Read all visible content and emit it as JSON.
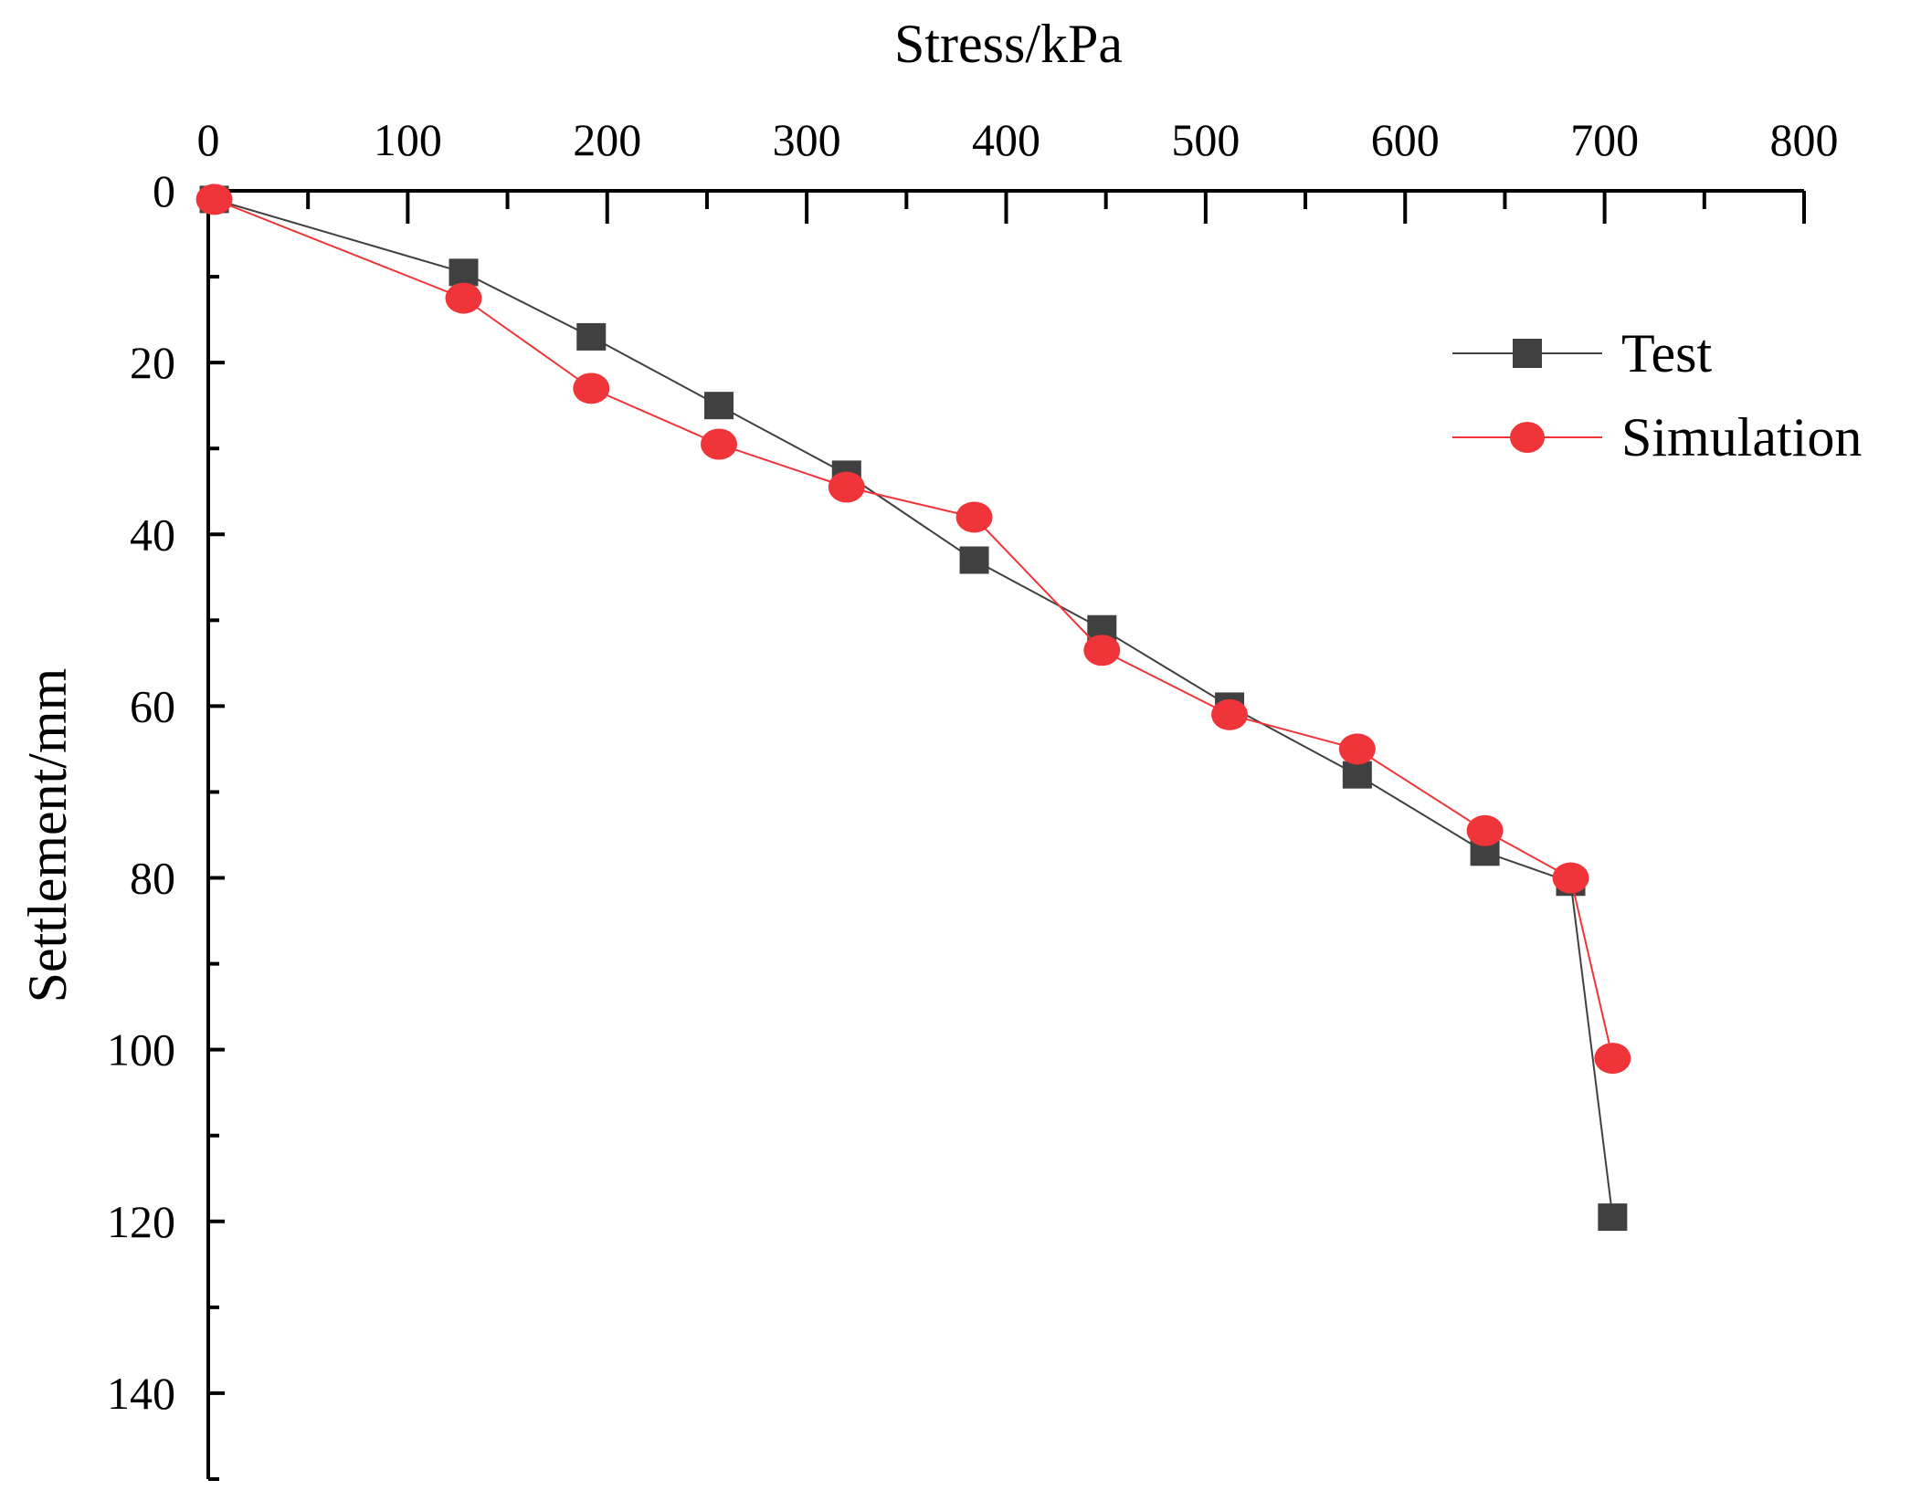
{
  "chart_data": {
    "type": "line",
    "title": "",
    "xlabel": "Stress/kPa",
    "ylabel": "Settlement/mm",
    "xlim": [
      0,
      800
    ],
    "ylim": [
      0,
      150
    ],
    "y_inverted": true,
    "x_axis_position": "top",
    "xticks": [
      0,
      100,
      200,
      300,
      400,
      500,
      600,
      700,
      800
    ],
    "yticks": [
      0,
      20,
      40,
      60,
      80,
      100,
      120,
      140
    ],
    "grid": false,
    "legend_position": "top-right",
    "series": [
      {
        "name": "Test",
        "color": "#404040",
        "marker": "square",
        "x": [
          3,
          128,
          192,
          256,
          320,
          384,
          448,
          512,
          576,
          640,
          683,
          704
        ],
        "y": [
          1,
          9.5,
          17,
          25,
          33,
          43,
          51,
          60,
          68,
          77,
          80.5,
          119.5
        ]
      },
      {
        "name": "Simulation",
        "color": "#f0353a",
        "marker": "circle",
        "x": [
          3,
          128,
          192,
          256,
          320,
          384,
          448,
          512,
          576,
          640,
          683,
          704
        ],
        "y": [
          1,
          12.5,
          23,
          29.5,
          34.5,
          38,
          53.5,
          61,
          65,
          74.5,
          80,
          101
        ]
      }
    ]
  }
}
